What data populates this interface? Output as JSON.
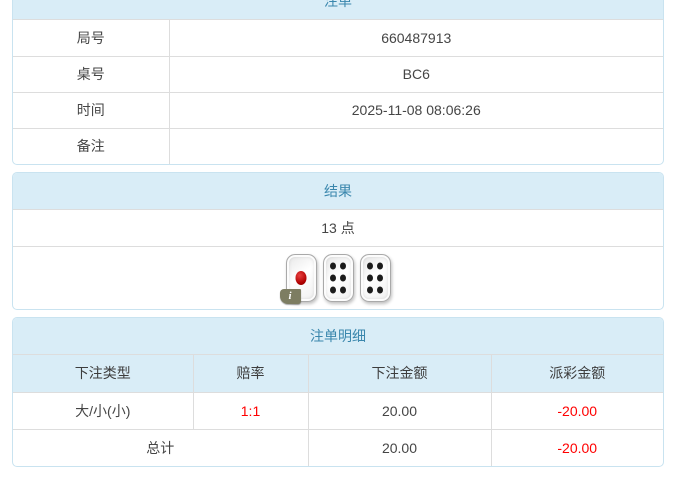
{
  "colors": {
    "header_bg": "#d9edf7",
    "header_text": "#3a87ad",
    "panel_border": "#c9e3f0",
    "divider": "#dddddd",
    "body_text": "#454545",
    "negative": "#ff0000",
    "badge": "#7d7d62"
  },
  "bet_info": {
    "title": "注单",
    "rows": [
      {
        "label": "局号",
        "value": "660487913"
      },
      {
        "label": "桌号",
        "value": "BC6"
      },
      {
        "label": "时间",
        "value": "2025-11-08 08:06:26"
      },
      {
        "label": "备注",
        "value": ""
      }
    ]
  },
  "result": {
    "title": "结果",
    "points": "13 点",
    "dice": [
      1,
      6,
      6
    ],
    "info_badge": "i"
  },
  "bet_details": {
    "title": "注单明细",
    "columns": [
      "下注类型",
      "赔率",
      "下注金额",
      "派彩金额"
    ],
    "rows": [
      {
        "type": "大/小(小)",
        "odds": "1:1",
        "bet_amount": "20.00",
        "payout": "-20.00"
      }
    ],
    "total": {
      "label": "总计",
      "bet_amount": "20.00",
      "payout": "-20.00"
    }
  }
}
